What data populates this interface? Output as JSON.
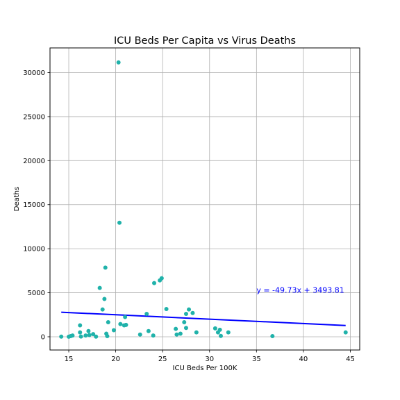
{
  "chart_data": {
    "type": "scatter",
    "title": "ICU Beds Per Capita vs Virus Deaths",
    "xlabel": "ICU Beds Per 100K",
    "ylabel": "Deaths",
    "xlim": [
      13,
      46
    ],
    "ylim": [
      -1500,
      32800
    ],
    "xticks": [
      15,
      20,
      25,
      30,
      35,
      40,
      45
    ],
    "yticks": [
      0,
      5000,
      10000,
      15000,
      20000,
      25000,
      30000
    ],
    "grid": true,
    "point_color": "#20b2aa",
    "line_color": "#0000ff",
    "annotation": {
      "text": "y = -49.73x + 3493.81",
      "x": 35,
      "y": 5000,
      "color": "#0000ff"
    },
    "regression": {
      "slope": -49.73,
      "intercept": 3493.81,
      "x_range": [
        14.2,
        44.5
      ]
    },
    "points": [
      {
        "x": 14.2,
        "y": 20
      },
      {
        "x": 15.0,
        "y": 10
      },
      {
        "x": 15.2,
        "y": 80
      },
      {
        "x": 15.4,
        "y": 150
      },
      {
        "x": 16.2,
        "y": 1300
      },
      {
        "x": 16.2,
        "y": 500
      },
      {
        "x": 16.3,
        "y": 30
      },
      {
        "x": 16.8,
        "y": 150
      },
      {
        "x": 17.1,
        "y": 650
      },
      {
        "x": 17.2,
        "y": 200
      },
      {
        "x": 17.6,
        "y": 300
      },
      {
        "x": 17.9,
        "y": 20
      },
      {
        "x": 18.3,
        "y": 5550
      },
      {
        "x": 18.6,
        "y": 3100
      },
      {
        "x": 18.8,
        "y": 4300
      },
      {
        "x": 18.9,
        "y": 7850
      },
      {
        "x": 19.0,
        "y": 350
      },
      {
        "x": 19.1,
        "y": 80
      },
      {
        "x": 19.2,
        "y": 1650
      },
      {
        "x": 19.8,
        "y": 750
      },
      {
        "x": 20.3,
        "y": 31150
      },
      {
        "x": 20.4,
        "y": 12950
      },
      {
        "x": 20.5,
        "y": 1450
      },
      {
        "x": 20.9,
        "y": 1300
      },
      {
        "x": 21.0,
        "y": 2250
      },
      {
        "x": 21.1,
        "y": 1350
      },
      {
        "x": 22.6,
        "y": 250
      },
      {
        "x": 23.3,
        "y": 2600
      },
      {
        "x": 23.5,
        "y": 650
      },
      {
        "x": 24.0,
        "y": 150
      },
      {
        "x": 24.1,
        "y": 6100
      },
      {
        "x": 24.7,
        "y": 6400
      },
      {
        "x": 24.9,
        "y": 6650
      },
      {
        "x": 25.4,
        "y": 3150
      },
      {
        "x": 26.4,
        "y": 900
      },
      {
        "x": 26.5,
        "y": 250
      },
      {
        "x": 26.9,
        "y": 350
      },
      {
        "x": 27.3,
        "y": 1650
      },
      {
        "x": 27.5,
        "y": 2600
      },
      {
        "x": 27.5,
        "y": 1000
      },
      {
        "x": 27.8,
        "y": 3100
      },
      {
        "x": 28.2,
        "y": 2700
      },
      {
        "x": 28.6,
        "y": 500
      },
      {
        "x": 30.6,
        "y": 950
      },
      {
        "x": 30.9,
        "y": 500
      },
      {
        "x": 31.1,
        "y": 800
      },
      {
        "x": 31.2,
        "y": 100
      },
      {
        "x": 32.0,
        "y": 500
      },
      {
        "x": 36.7,
        "y": 80
      },
      {
        "x": 44.5,
        "y": 500
      }
    ]
  }
}
